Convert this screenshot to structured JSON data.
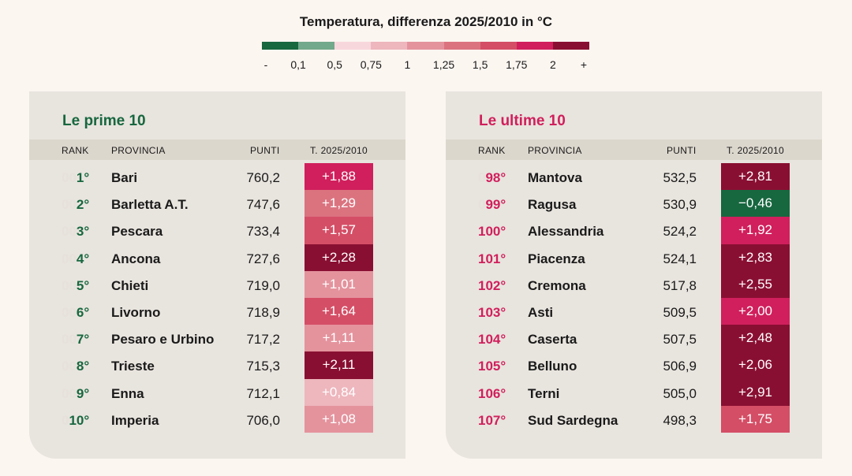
{
  "legend": {
    "title": "Temperatura, differenza 2025/2010 in °C",
    "colors": [
      "#17673f",
      "#72a88b",
      "#f8d7dc",
      "#eeb6bd",
      "#e4939d",
      "#db737f",
      "#d44e66",
      "#d01f5c",
      "#890f32"
    ],
    "labels": [
      "-",
      "0,1",
      "0,5",
      "0,75",
      "1",
      "1,25",
      "1,5",
      "1,75",
      "2",
      "+"
    ]
  },
  "chart_data": [
    {
      "type": "table",
      "title": "Le prime 10",
      "columns": [
        "RANK",
        "PROVINCIA",
        "PUNTI",
        "T. 2025/2010"
      ],
      "rows": [
        {
          "pad": "00",
          "num": "1°",
          "provincia": "Bari",
          "punti": "760,2",
          "temp": "+1,88",
          "color": "#d01f5c"
        },
        {
          "pad": "00",
          "num": "2°",
          "provincia": "Barletta A.T.",
          "punti": "747,6",
          "temp": "+1,29",
          "color": "#db737f"
        },
        {
          "pad": "00",
          "num": "3°",
          "provincia": "Pescara",
          "punti": "733,4",
          "temp": "+1,57",
          "color": "#d44e66"
        },
        {
          "pad": "00",
          "num": "4°",
          "provincia": "Ancona",
          "punti": "727,6",
          "temp": "+2,28",
          "color": "#890f32"
        },
        {
          "pad": "00",
          "num": "5°",
          "provincia": "Chieti",
          "punti": "719,0",
          "temp": "+1,01",
          "color": "#e4939d"
        },
        {
          "pad": "00",
          "num": "6°",
          "provincia": "Livorno",
          "punti": "718,9",
          "temp": "+1,64",
          "color": "#d44e66"
        },
        {
          "pad": "00",
          "num": "7°",
          "provincia": "Pesaro e Urbino",
          "punti": "717,2",
          "temp": "+1,11",
          "color": "#e4939d"
        },
        {
          "pad": "00",
          "num": "8°",
          "provincia": "Trieste",
          "punti": "715,3",
          "temp": "+2,11",
          "color": "#890f32"
        },
        {
          "pad": "00",
          "num": "9°",
          "provincia": "Enna",
          "punti": "712,1",
          "temp": "+0,84",
          "color": "#eeb6bd"
        },
        {
          "pad": "0",
          "num": "10°",
          "provincia": "Imperia",
          "punti": "706,0",
          "temp": "+1,08",
          "color": "#e4939d"
        }
      ]
    },
    {
      "type": "table",
      "title": "Le ultime 10",
      "columns": [
        "RANK",
        "PROVINCIA",
        "PUNTI",
        "T. 2025/2010"
      ],
      "rows": [
        {
          "pad": "0",
          "num": "98°",
          "provincia": "Mantova",
          "punti": "532,5",
          "temp": "+2,81",
          "color": "#890f32"
        },
        {
          "pad": "0",
          "num": "99°",
          "provincia": "Ragusa",
          "punti": "530,9",
          "temp": "−0,46",
          "color": "#17673f"
        },
        {
          "pad": "",
          "num": "100°",
          "provincia": "Alessandria",
          "punti": "524,2",
          "temp": "+1,92",
          "color": "#d01f5c"
        },
        {
          "pad": "",
          "num": "101°",
          "provincia": "Piacenza",
          "punti": "524,1",
          "temp": "+2,83",
          "color": "#890f32"
        },
        {
          "pad": "",
          "num": "102°",
          "provincia": "Cremona",
          "punti": "517,8",
          "temp": "+2,55",
          "color": "#890f32"
        },
        {
          "pad": "",
          "num": "103°",
          "provincia": "Asti",
          "punti": "509,5",
          "temp": "+2,00",
          "color": "#d01f5c"
        },
        {
          "pad": "",
          "num": "104°",
          "provincia": "Caserta",
          "punti": "507,5",
          "temp": "+2,48",
          "color": "#890f32"
        },
        {
          "pad": "",
          "num": "105°",
          "provincia": "Belluno",
          "punti": "506,9",
          "temp": "+2,06",
          "color": "#890f32"
        },
        {
          "pad": "",
          "num": "106°",
          "provincia": "Terni",
          "punti": "505,0",
          "temp": "+2,91",
          "color": "#890f32"
        },
        {
          "pad": "",
          "num": "107°",
          "provincia": "Sud Sardegna",
          "punti": "498,3",
          "temp": "+1,75",
          "color": "#d44e66"
        }
      ]
    }
  ]
}
